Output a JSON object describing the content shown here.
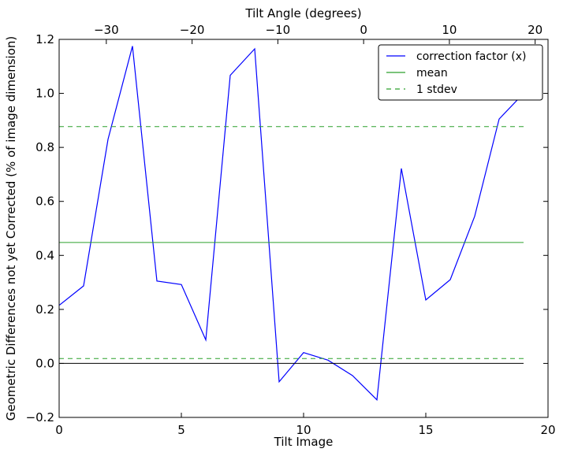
{
  "chart_data": {
    "type": "line",
    "xlabel": "Tilt Image",
    "ylabel": "Geometric Differences not yet Corrected (% of image dimension)",
    "top_xlabel": "Tilt Angle (degrees)",
    "xlim": [
      0,
      20
    ],
    "ylim": [
      -0.2,
      1.2
    ],
    "top_xlim": [
      -35.5,
      21.5
    ],
    "xticks": [
      "0",
      "5",
      "10",
      "15",
      "20"
    ],
    "yticks": [
      "−0.2",
      "0.0",
      "0.2",
      "0.4",
      "0.6",
      "0.8",
      "1.0",
      "1.2"
    ],
    "top_xticks": [
      "−30",
      "−20",
      "−10",
      "0",
      "10",
      "20"
    ],
    "grid": false,
    "legend_position": "top-right",
    "series": [
      {
        "name": "correction factor (x)",
        "style": "solid",
        "color": "#0000ff",
        "x": [
          0,
          1,
          2,
          3,
          4,
          5,
          6,
          7,
          8,
          9,
          10,
          11,
          12,
          13,
          14,
          15,
          16,
          17,
          18,
          19
        ],
        "y": [
          0.215,
          0.287,
          0.83,
          1.175,
          0.305,
          0.292,
          0.087,
          1.067,
          1.165,
          -0.068,
          0.04,
          0.012,
          -0.045,
          -0.135,
          0.722,
          0.235,
          0.31,
          0.545,
          0.905,
          1.0
        ]
      },
      {
        "name": "mean",
        "style": "solid",
        "color": "#2ca02c",
        "x": [
          0,
          19
        ],
        "y": [
          0.448,
          0.448
        ]
      },
      {
        "name": "1 stdev",
        "style": "dashed",
        "color": "#2ca02c",
        "x": [
          0,
          19
        ],
        "y": [
          0.877,
          0.877
        ]
      },
      {
        "name": "",
        "style": "dashed",
        "color": "#2ca02c",
        "x": [
          0,
          19
        ],
        "y": [
          0.018,
          0.018
        ]
      },
      {
        "name": "",
        "style": "solid",
        "color": "#000000",
        "x": [
          0,
          19
        ],
        "y": [
          0.0,
          0.0
        ]
      }
    ]
  }
}
